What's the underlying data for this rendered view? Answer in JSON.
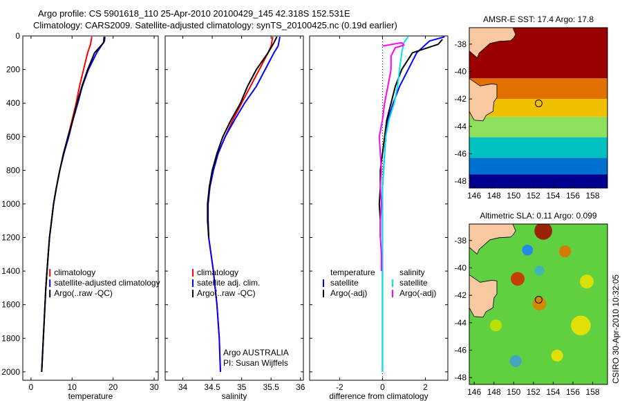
{
  "header": {
    "line1": "Argo profile: CS 5901618_110 25-Apr-2010 20100429_145 42.318S 152.531E",
    "line2": "Climatology: CARS2009. Satellite-adjusted climatology: synTS_20100425.nc (0.19d earlier)"
  },
  "side_label": "CSIRO 30-Apr-2010 10:32:05",
  "colors": {
    "climatology": "#ff0000",
    "satellite": "#0000ff",
    "argo": "#000000",
    "diff_temp_sat": "#0000ff",
    "diff_sal_sat": "#00e5e5",
    "diff_sal_argo": "#ff00ff",
    "land": "#f8c8a0"
  },
  "chart_data": [
    {
      "type": "line",
      "xlabel": "temperature",
      "xlim": [
        -2,
        31
      ],
      "ylim": [
        2050,
        0
      ],
      "xticks": [
        0,
        10,
        20,
        30
      ],
      "yticks": [
        0,
        200,
        400,
        600,
        800,
        1000,
        1200,
        1400,
        1600,
        1800,
        2000
      ],
      "legend": {
        "placement": "lower-right",
        "entries": [
          "climatology",
          "satellite-adjusted climatology",
          "Argo(..raw -QC)"
        ]
      },
      "series": [
        {
          "name": "climatology",
          "color": "#ff0000",
          "points": [
            [
              14.8,
              5
            ],
            [
              14.5,
              50
            ],
            [
              13.8,
              100
            ],
            [
              12.8,
              200
            ],
            [
              11.8,
              300
            ],
            [
              11.0,
              400
            ],
            [
              10.0,
              500
            ],
            [
              9.0,
              600
            ],
            [
              8.0,
              700
            ],
            [
              7.0,
              800
            ],
            [
              6.2,
              900
            ],
            [
              5.5,
              1000
            ],
            [
              5.0,
              1100
            ],
            [
              4.5,
              1200
            ],
            [
              4.2,
              1300
            ],
            [
              3.9,
              1400
            ],
            [
              3.6,
              1500
            ],
            [
              3.4,
              1600
            ],
            [
              3.2,
              1700
            ],
            [
              3.0,
              1800
            ],
            [
              2.8,
              1900
            ],
            [
              2.6,
              2000
            ]
          ]
        },
        {
          "name": "satellite-adjusted climatology",
          "color": "#0000ff",
          "points": [
            [
              18.0,
              5
            ],
            [
              17.9,
              30
            ],
            [
              16.0,
              100
            ],
            [
              14.0,
              200
            ],
            [
              12.5,
              300
            ],
            [
              11.4,
              400
            ],
            [
              10.2,
              500
            ],
            [
              9.2,
              600
            ],
            [
              8.0,
              700
            ],
            [
              7.0,
              800
            ],
            [
              6.2,
              900
            ],
            [
              5.5,
              1000
            ],
            [
              5.0,
              1100
            ],
            [
              4.5,
              1200
            ],
            [
              4.2,
              1300
            ],
            [
              3.9,
              1400
            ],
            [
              3.6,
              1500
            ],
            [
              3.4,
              1600
            ],
            [
              3.2,
              1700
            ],
            [
              3.0,
              1800
            ],
            [
              2.8,
              1900
            ],
            [
              2.6,
              2000
            ]
          ]
        },
        {
          "name": "Argo(..raw -QC)",
          "color": "#000000",
          "points": [
            [
              17.8,
              5
            ],
            [
              17.7,
              40
            ],
            [
              15.5,
              100
            ],
            [
              13.8,
              200
            ],
            [
              12.4,
              300
            ],
            [
              11.2,
              400
            ],
            [
              10.2,
              500
            ],
            [
              9.0,
              600
            ],
            [
              7.9,
              700
            ],
            [
              7.0,
              800
            ],
            [
              6.2,
              900
            ],
            [
              5.5,
              1000
            ],
            [
              5.0,
              1100
            ],
            [
              4.5,
              1200
            ],
            [
              4.2,
              1300
            ],
            [
              3.9,
              1400
            ],
            [
              3.6,
              1500
            ],
            [
              3.4,
              1600
            ],
            [
              3.2,
              1700
            ],
            [
              3.0,
              1800
            ],
            [
              2.8,
              1900
            ],
            [
              2.6,
              2000
            ]
          ]
        }
      ]
    },
    {
      "type": "line",
      "xlabel": "salinity",
      "xlim": [
        33.7,
        36.05
      ],
      "ylim": [
        2050,
        0
      ],
      "xticks": [
        34,
        34.5,
        35,
        35.5,
        36
      ],
      "xticklabels": [
        "34",
        "34.5",
        "35",
        "35.5",
        "36"
      ],
      "yticks": [
        0,
        200,
        400,
        600,
        800,
        1000,
        1200,
        1400,
        1600,
        1800,
        2000
      ],
      "legend": {
        "placement": "lower-right",
        "entries": [
          "climatology",
          "satellite adj. clim.",
          "Argo(..raw -QC)"
        ]
      },
      "annotation": [
        "Argo AUSTRALIA",
        "PI: Susan Wijffels"
      ],
      "series": [
        {
          "name": "climatology",
          "color": "#ff0000",
          "points": [
            [
              35.53,
              5
            ],
            [
              35.5,
              60
            ],
            [
              35.45,
              100
            ],
            [
              35.3,
              200
            ],
            [
              35.15,
              300
            ],
            [
              35.0,
              400
            ],
            [
              34.85,
              500
            ],
            [
              34.72,
              600
            ],
            [
              34.6,
              700
            ],
            [
              34.52,
              800
            ],
            [
              34.46,
              900
            ],
            [
              34.43,
              1000
            ],
            [
              34.43,
              1100
            ],
            [
              34.44,
              1200
            ],
            [
              34.48,
              1300
            ],
            [
              34.52,
              1400
            ],
            [
              34.55,
              1500
            ],
            [
              34.58,
              1600
            ],
            [
              34.6,
              1700
            ],
            [
              34.62,
              1800
            ],
            [
              34.63,
              1900
            ],
            [
              34.64,
              2000
            ]
          ]
        },
        {
          "name": "satellite adj. clim.",
          "color": "#0000ff",
          "points": [
            [
              35.65,
              5
            ],
            [
              35.62,
              60
            ],
            [
              35.55,
              100
            ],
            [
              35.4,
              200
            ],
            [
              35.25,
              300
            ],
            [
              35.05,
              400
            ],
            [
              34.88,
              500
            ],
            [
              34.72,
              600
            ],
            [
              34.6,
              700
            ],
            [
              34.52,
              800
            ],
            [
              34.46,
              900
            ],
            [
              34.43,
              1000
            ],
            [
              34.43,
              1100
            ],
            [
              34.44,
              1200
            ],
            [
              34.48,
              1300
            ],
            [
              34.52,
              1400
            ],
            [
              34.55,
              1500
            ],
            [
              34.58,
              1600
            ],
            [
              34.6,
              1700
            ],
            [
              34.62,
              1800
            ],
            [
              34.63,
              1900
            ],
            [
              34.64,
              2000
            ]
          ]
        },
        {
          "name": "Argo(..raw -QC)",
          "color": "#000000",
          "points": [
            [
              35.6,
              5
            ],
            [
              35.55,
              40
            ],
            [
              35.45,
              100
            ],
            [
              35.25,
              200
            ],
            [
              35.1,
              300
            ],
            [
              34.98,
              400
            ],
            [
              34.82,
              500
            ],
            [
              34.68,
              600
            ],
            [
              34.58,
              700
            ],
            [
              34.5,
              800
            ],
            [
              34.45,
              900
            ],
            [
              34.42,
              1000
            ],
            [
              34.42,
              1100
            ],
            [
              34.44,
              1200
            ]
          ]
        }
      ]
    },
    {
      "type": "line",
      "xlabel": "difference from climatology",
      "xlim": [
        -3.4,
        3.05
      ],
      "ylim": [
        2050,
        0
      ],
      "xticks": [
        -2,
        0,
        2
      ],
      "yticks": [
        0,
        200,
        400,
        600,
        800,
        1000,
        1200,
        1400,
        1600,
        1800,
        2000
      ],
      "legend": {
        "placement": "lower-right",
        "entries": [
          "temperature",
          "satellite",
          "Argo(-adj)",
          "salinity",
          "satellite",
          "Argo(-adj)"
        ]
      },
      "series": [
        {
          "name": "satellite",
          "color": "#0000ff",
          "points": [
            [
              2.9,
              5
            ],
            [
              2.2,
              30
            ],
            [
              1.6,
              100
            ],
            [
              1.2,
              200
            ],
            [
              0.8,
              300
            ],
            [
              0.5,
              400
            ],
            [
              0.25,
              500
            ],
            [
              0.15,
              600
            ],
            [
              0.1,
              700
            ],
            [
              0.05,
              800
            ],
            [
              0.0,
              900
            ],
            [
              0.0,
              1000
            ],
            [
              0.0,
              1100
            ],
            [
              0.0,
              2000
            ]
          ]
        },
        {
          "name": "Argo(-adj)",
          "color": "#000000",
          "points": [
            [
              2.8,
              20
            ],
            [
              2.6,
              50
            ],
            [
              1.4,
              100
            ],
            [
              0.9,
              200
            ],
            [
              0.6,
              300
            ],
            [
              0.4,
              400
            ],
            [
              0.2,
              500
            ],
            [
              0.1,
              600
            ],
            [
              0.0,
              700
            ],
            [
              -0.1,
              800
            ],
            [
              -0.1,
              900
            ],
            [
              -0.15,
              1000
            ],
            [
              -0.1,
              1100
            ],
            [
              -0.1,
              1200
            ]
          ]
        },
        {
          "name": "satellite",
          "color": "#00e5e5",
          "points": [
            [
              1.2,
              5
            ],
            [
              1.0,
              40
            ],
            [
              0.9,
              100
            ],
            [
              0.8,
              200
            ],
            [
              0.7,
              300
            ],
            [
              0.55,
              400
            ],
            [
              0.3,
              500
            ],
            [
              0.15,
              600
            ],
            [
              0.1,
              700
            ],
            [
              0.05,
              800
            ],
            [
              0.0,
              900
            ],
            [
              0.0,
              1000
            ],
            [
              0.0,
              1100
            ],
            [
              0.0,
              2000
            ]
          ]
        },
        {
          "name": "Argo(-adj)",
          "color": "#ff00ff",
          "points": [
            [
              0.0,
              60
            ],
            [
              0.9,
              40
            ],
            [
              1.0,
              55
            ],
            [
              0.6,
              70
            ],
            [
              0.4,
              120
            ],
            [
              0.4,
              200
            ],
            [
              0.25,
              300
            ],
            [
              0.1,
              400
            ],
            [
              0.0,
              500
            ],
            [
              -0.15,
              600
            ],
            [
              -0.1,
              700
            ],
            [
              -0.05,
              800
            ],
            [
              -0.1,
              900
            ],
            [
              -0.05,
              1000
            ],
            [
              -0.1,
              1100
            ],
            [
              -0.1,
              1200
            ],
            [
              -0.05,
              1300
            ],
            [
              -0.05,
              1400
            ]
          ]
        }
      ]
    },
    {
      "type": "heatmap",
      "title": "AMSR-E SST: 17.4 Argo: 17.8",
      "xlim": [
        145.5,
        159.5
      ],
      "ylim": [
        -48.5,
        -36.8
      ],
      "xticks": [
        146,
        148,
        150,
        152,
        154,
        156,
        158
      ],
      "yticks": [
        -38,
        -40,
        -42,
        -44,
        -46,
        -48
      ],
      "marker": {
        "lon": 152.53,
        "lat": -42.32
      },
      "bands": [
        {
          "lat_from": -36.8,
          "lat_to": -40.5,
          "color": "#9a0000"
        },
        {
          "lat_from": -40.5,
          "lat_to": -42.0,
          "color": "#e07000"
        },
        {
          "lat_from": -42.0,
          "lat_to": -43.3,
          "color": "#f0c000"
        },
        {
          "lat_from": -43.3,
          "lat_to": -44.8,
          "color": "#90e060"
        },
        {
          "lat_from": -44.8,
          "lat_to": -46.3,
          "color": "#00c0c0"
        },
        {
          "lat_from": -46.3,
          "lat_to": -47.5,
          "color": "#0070d0"
        },
        {
          "lat_from": -47.5,
          "lat_to": -48.5,
          "color": "#000090"
        }
      ]
    },
    {
      "type": "heatmap",
      "title": "Altimetric SLA: 0.11 Argo: 0.099",
      "xlim": [
        145.5,
        159.5
      ],
      "ylim": [
        -48.5,
        -36.8
      ],
      "xticks": [
        146,
        148,
        150,
        152,
        154,
        156,
        158
      ],
      "yticks": [
        -38,
        -40,
        -42,
        -44,
        -46,
        -48
      ],
      "marker": {
        "lon": 152.53,
        "lat": -42.32
      },
      "background": "#60d040",
      "blobs": [
        {
          "lon": 153.0,
          "lat": -37.3,
          "r": 0.9,
          "color": "#a01000"
        },
        {
          "lon": 150.4,
          "lat": -40.8,
          "r": 0.7,
          "color": "#d03000"
        },
        {
          "lon": 155.2,
          "lat": -38.8,
          "r": 0.6,
          "color": "#e07000"
        },
        {
          "lon": 152.6,
          "lat": -42.6,
          "r": 0.7,
          "color": "#e08000"
        },
        {
          "lon": 151.4,
          "lat": -38.7,
          "r": 0.55,
          "color": "#2080ff"
        },
        {
          "lon": 152.6,
          "lat": -40.2,
          "r": 0.5,
          "color": "#40b0c0"
        },
        {
          "lon": 150.2,
          "lat": -46.8,
          "r": 0.6,
          "color": "#40a0d0"
        },
        {
          "lon": 156.8,
          "lat": -44.2,
          "r": 1.0,
          "color": "#f0e000"
        },
        {
          "lon": 157.4,
          "lat": -41.0,
          "r": 0.7,
          "color": "#e8e000"
        },
        {
          "lon": 148.2,
          "lat": -44.2,
          "r": 0.6,
          "color": "#c8e000"
        },
        {
          "lon": 154.4,
          "lat": -46.4,
          "r": 0.6,
          "color": "#f0e000"
        }
      ]
    }
  ]
}
